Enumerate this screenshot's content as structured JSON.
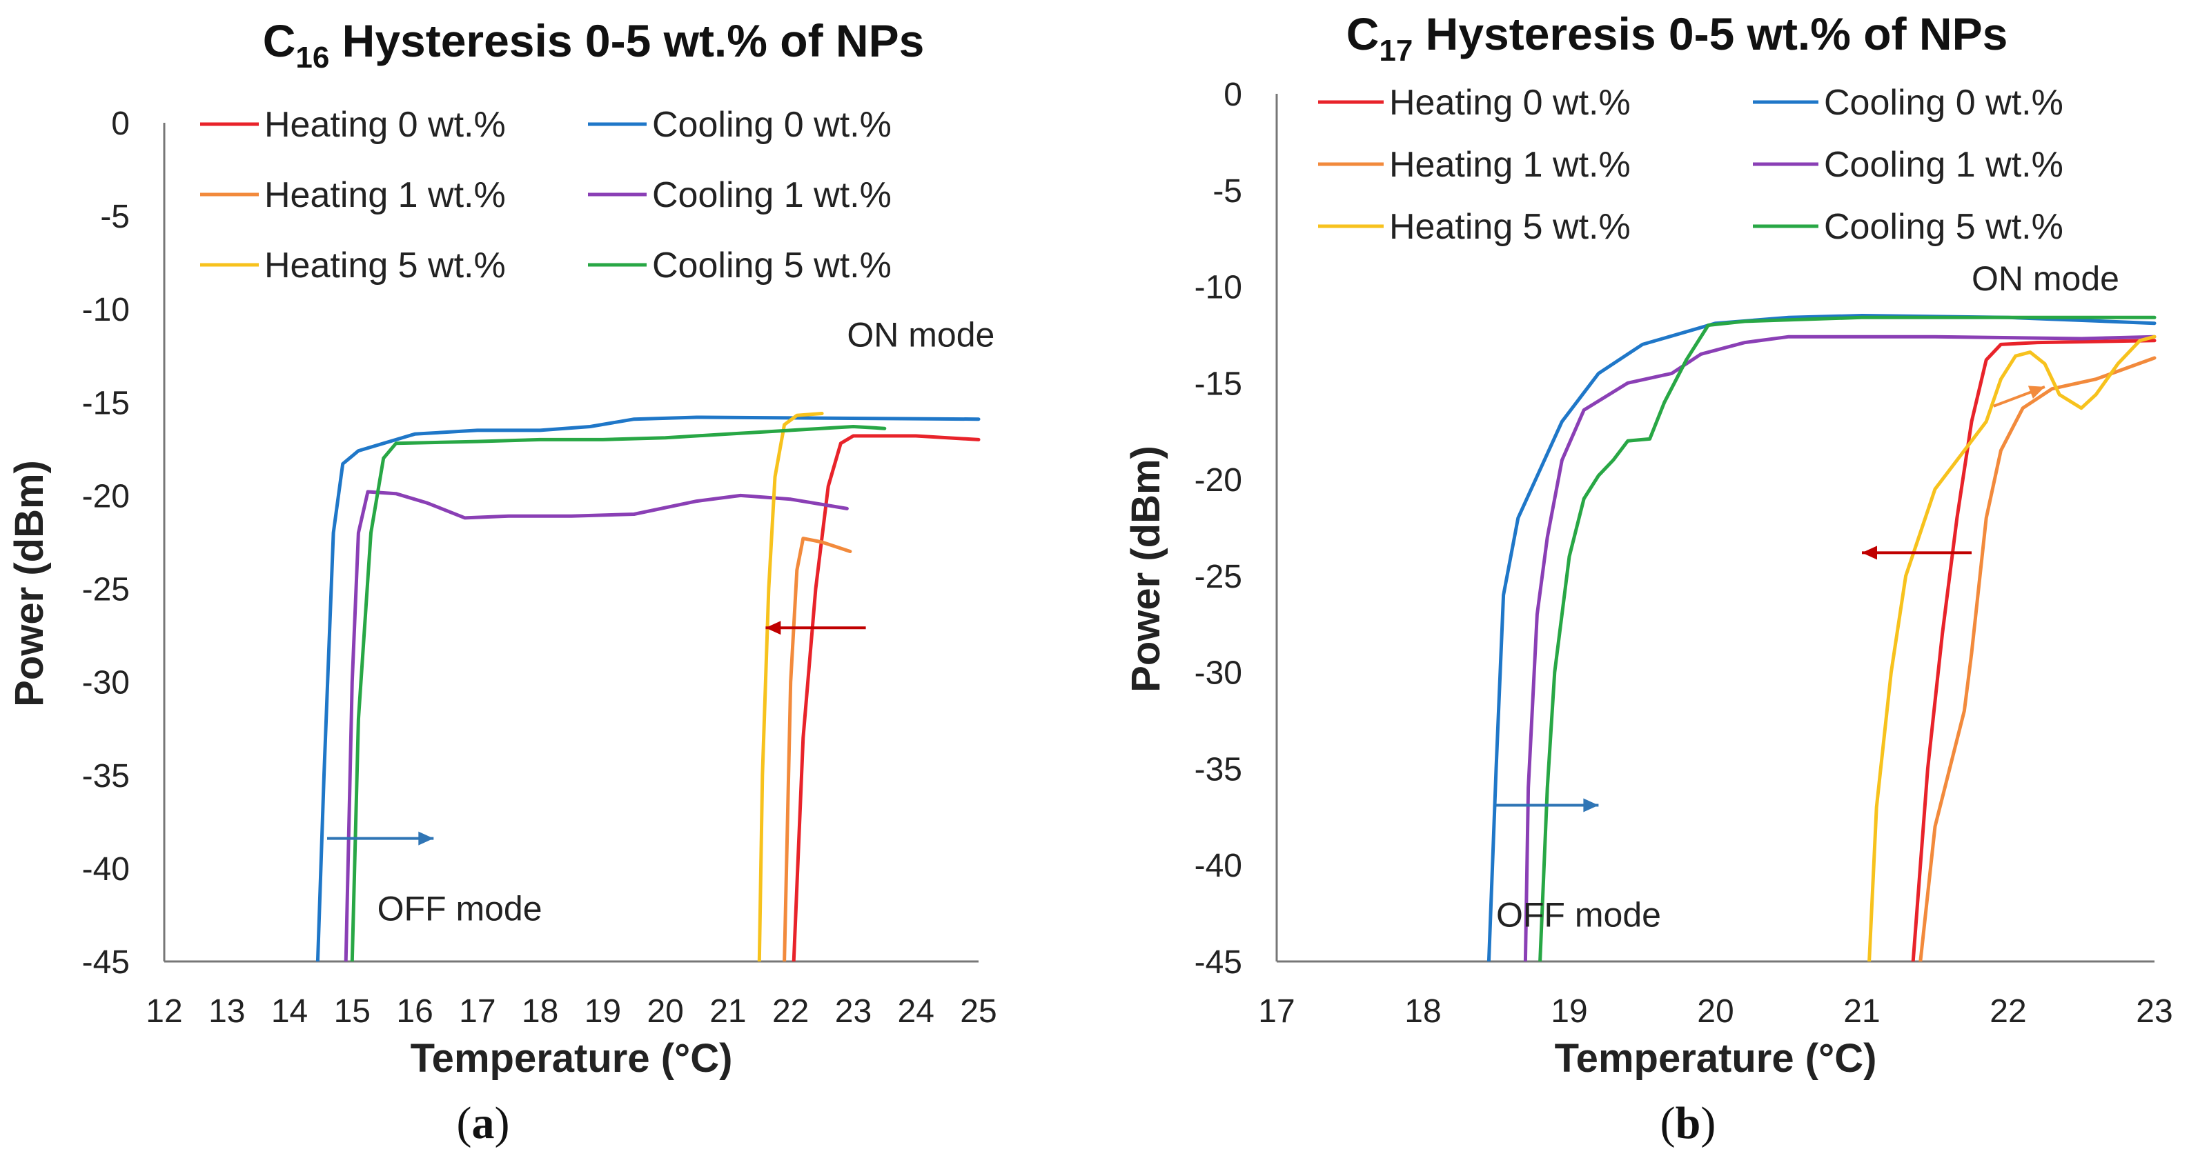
{
  "chart_data": [
    {
      "type": "line",
      "title_main": "C",
      "title_sub": "16",
      "title_rest": " Hysteresis 0-5 wt.% of NPs",
      "xlabel": "Temperature (°C)",
      "ylabel": "Power (dBm)",
      "xlim": [
        12,
        25
      ],
      "ylim": [
        -45,
        0
      ],
      "xticks": [
        "12",
        "13",
        "14",
        "15",
        "16",
        "17",
        "18",
        "19",
        "20",
        "21",
        "22",
        "23",
        "24",
        "25"
      ],
      "yticks": [
        "0",
        "-5",
        "-10",
        "-15",
        "-20",
        "-25",
        "-30",
        "-35",
        "-40",
        "-45"
      ],
      "caption_open": "(",
      "caption_letter": "a",
      "caption_close": ")",
      "annotations": [
        {
          "name": "on-mode-label",
          "text": "ON mode",
          "x": 22.9,
          "y": -12.0
        },
        {
          "name": "off-mode-label",
          "text": "OFF mode",
          "x": 15.4,
          "y": -42.8
        }
      ],
      "arrows": [
        {
          "name": "heating-arrow",
          "from": [
            23.2,
            -27.1
          ],
          "to": [
            21.6,
            -27.1
          ],
          "color": "#c00000"
        },
        {
          "name": "cooling-arrow",
          "from": [
            14.6,
            -38.4
          ],
          "to": [
            16.3,
            -38.4
          ],
          "color": "#2f75b5"
        }
      ],
      "series": [
        {
          "name": "Heating 0 wt.%",
          "color": "#e8232a",
          "points": [
            [
              22.05,
              -45
            ],
            [
              22.2,
              -33
            ],
            [
              22.4,
              -25
            ],
            [
              22.6,
              -19.5
            ],
            [
              22.8,
              -17.2
            ],
            [
              23.0,
              -16.8
            ],
            [
              24.0,
              -16.8
            ],
            [
              25.0,
              -17.0
            ]
          ]
        },
        {
          "name": "Cooling 0 wt.%",
          "color": "#1f77c8",
          "points": [
            [
              14.45,
              -45
            ],
            [
              14.55,
              -35
            ],
            [
              14.7,
              -22
            ],
            [
              14.85,
              -18.3
            ],
            [
              15.1,
              -17.6
            ],
            [
              15.5,
              -17.2
            ],
            [
              16.0,
              -16.7
            ],
            [
              17.0,
              -16.5
            ],
            [
              18.0,
              -16.5
            ],
            [
              18.8,
              -16.3
            ],
            [
              19.5,
              -15.9
            ],
            [
              20.5,
              -15.8
            ],
            [
              25.0,
              -15.9
            ]
          ]
        },
        {
          "name": "Heating 1 wt.%",
          "color": "#f28a3c",
          "points": [
            [
              21.9,
              -45
            ],
            [
              22.0,
              -30
            ],
            [
              22.1,
              -24
            ],
            [
              22.2,
              -22.3
            ],
            [
              22.5,
              -22.5
            ],
            [
              22.95,
              -23.0
            ]
          ]
        },
        {
          "name": "Cooling 1 wt.%",
          "color": "#8a3fb5",
          "points": [
            [
              14.9,
              -45
            ],
            [
              15.0,
              -30
            ],
            [
              15.1,
              -22
            ],
            [
              15.25,
              -19.8
            ],
            [
              15.7,
              -19.9
            ],
            [
              16.2,
              -20.4
            ],
            [
              16.8,
              -21.2
            ],
            [
              17.5,
              -21.1
            ],
            [
              18.5,
              -21.1
            ],
            [
              19.5,
              -21.0
            ],
            [
              20.5,
              -20.3
            ],
            [
              21.2,
              -20.0
            ],
            [
              22.0,
              -20.2
            ],
            [
              22.9,
              -20.7
            ]
          ]
        },
        {
          "name": "Heating 5 wt.%",
          "color": "#f7c21d",
          "points": [
            [
              21.5,
              -45
            ],
            [
              21.55,
              -35
            ],
            [
              21.65,
              -25
            ],
            [
              21.75,
              -19
            ],
            [
              21.9,
              -16.2
            ],
            [
              22.1,
              -15.7
            ],
            [
              22.5,
              -15.6
            ]
          ]
        },
        {
          "name": "Cooling 5 wt.%",
          "color": "#28a745",
          "points": [
            [
              15.0,
              -45
            ],
            [
              15.1,
              -32
            ],
            [
              15.3,
              -22
            ],
            [
              15.5,
              -18
            ],
            [
              15.7,
              -17.2
            ],
            [
              17.0,
              -17.1
            ],
            [
              18.0,
              -17.0
            ],
            [
              19.0,
              -17.0
            ],
            [
              20.0,
              -16.9
            ],
            [
              21.0,
              -16.7
            ],
            [
              22.0,
              -16.5
            ],
            [
              23.0,
              -16.3
            ],
            [
              23.5,
              -16.4
            ]
          ]
        }
      ]
    },
    {
      "type": "line",
      "title_main": "C",
      "title_sub": "17",
      "title_rest": " Hysteresis 0-5 wt.% of NPs",
      "xlabel": "Temperature (°C)",
      "ylabel": "Power (dBm)",
      "xlim": [
        17,
        23
      ],
      "ylim": [
        -45,
        0
      ],
      "xticks": [
        "17",
        "18",
        "19",
        "20",
        "21",
        "22",
        "23"
      ],
      "yticks": [
        "0",
        "-5",
        "-10",
        "-15",
        "-20",
        "-25",
        "-30",
        "-35",
        "-40",
        "-45"
      ],
      "caption_open": "(",
      "caption_letter": "b",
      "caption_close": ")",
      "annotations": [
        {
          "name": "on-mode-label",
          "text": "ON mode",
          "x": 21.75,
          "y": -10.2
        },
        {
          "name": "off-mode-label",
          "text": "OFF mode",
          "x": 18.5,
          "y": -43.2
        }
      ],
      "arrows": [
        {
          "name": "heating-arrow",
          "from": [
            21.75,
            -23.8
          ],
          "to": [
            21.0,
            -23.8
          ],
          "color": "#c00000"
        },
        {
          "name": "cooling-arrow",
          "from": [
            18.5,
            -36.9
          ],
          "to": [
            19.2,
            -36.9
          ],
          "color": "#2f75b5"
        },
        {
          "name": "heating-1-arrow",
          "from": [
            21.9,
            -16.2
          ],
          "to": [
            22.25,
            -15.2
          ],
          "color": "#f28a3c"
        }
      ],
      "series": [
        {
          "name": "Heating 0 wt.%",
          "color": "#e8232a",
          "points": [
            [
              21.35,
              -45
            ],
            [
              21.45,
              -35
            ],
            [
              21.55,
              -28
            ],
            [
              21.65,
              -22
            ],
            [
              21.75,
              -17
            ],
            [
              21.85,
              -13.8
            ],
            [
              21.95,
              -13.0
            ],
            [
              22.2,
              -12.9
            ],
            [
              23.0,
              -12.8
            ]
          ]
        },
        {
          "name": "Cooling 0 wt.%",
          "color": "#1f77c8",
          "points": [
            [
              18.45,
              -45
            ],
            [
              18.5,
              -35
            ],
            [
              18.55,
              -26
            ],
            [
              18.65,
              -22
            ],
            [
              18.8,
              -19.5
            ],
            [
              18.95,
              -17
            ],
            [
              19.2,
              -14.5
            ],
            [
              19.5,
              -13.0
            ],
            [
              20.0,
              -11.9
            ],
            [
              20.5,
              -11.6
            ],
            [
              21.0,
              -11.5
            ],
            [
              22.0,
              -11.6
            ],
            [
              23.0,
              -11.9
            ]
          ]
        },
        {
          "name": "Heating 1 wt.%",
          "color": "#f28a3c",
          "points": [
            [
              21.4,
              -45
            ],
            [
              21.5,
              -38
            ],
            [
              21.6,
              -35
            ],
            [
              21.7,
              -32
            ],
            [
              21.75,
              -29
            ],
            [
              21.85,
              -22
            ],
            [
              21.95,
              -18.5
            ],
            [
              22.1,
              -16.3
            ],
            [
              22.3,
              -15.3
            ],
            [
              22.6,
              -14.8
            ],
            [
              23.0,
              -13.7
            ]
          ]
        },
        {
          "name": "Cooling 1 wt.%",
          "color": "#8a3fb5",
          "points": [
            [
              18.7,
              -45
            ],
            [
              18.72,
              -36
            ],
            [
              18.78,
              -27
            ],
            [
              18.85,
              -23
            ],
            [
              18.95,
              -19
            ],
            [
              19.1,
              -16.4
            ],
            [
              19.4,
              -15.0
            ],
            [
              19.7,
              -14.5
            ],
            [
              19.9,
              -13.5
            ],
            [
              20.2,
              -12.9
            ],
            [
              20.5,
              -12.6
            ],
            [
              21.5,
              -12.6
            ],
            [
              22.5,
              -12.7
            ],
            [
              23.0,
              -12.6
            ]
          ]
        },
        {
          "name": "Heating 5 wt.%",
          "color": "#f7c21d",
          "points": [
            [
              21.05,
              -45
            ],
            [
              21.1,
              -37
            ],
            [
              21.2,
              -30
            ],
            [
              21.3,
              -25
            ],
            [
              21.5,
              -20.5
            ],
            [
              21.7,
              -18.5
            ],
            [
              21.85,
              -17
            ],
            [
              21.95,
              -14.8
            ],
            [
              22.05,
              -13.6
            ],
            [
              22.15,
              -13.4
            ],
            [
              22.25,
              -14.0
            ],
            [
              22.35,
              -15.6
            ],
            [
              22.5,
              -16.3
            ],
            [
              22.6,
              -15.6
            ],
            [
              22.75,
              -14.0
            ],
            [
              22.9,
              -12.8
            ],
            [
              23.0,
              -12.6
            ]
          ]
        },
        {
          "name": "Cooling 5 wt.%",
          "color": "#28a745",
          "points": [
            [
              18.8,
              -45
            ],
            [
              18.85,
              -36
            ],
            [
              18.9,
              -30
            ],
            [
              19.0,
              -24
            ],
            [
              19.1,
              -21
            ],
            [
              19.2,
              -19.8
            ],
            [
              19.3,
              -19.0
            ],
            [
              19.4,
              -18.0
            ],
            [
              19.55,
              -17.9
            ],
            [
              19.65,
              -16.0
            ],
            [
              19.8,
              -13.8
            ],
            [
              19.95,
              -12.0
            ],
            [
              20.2,
              -11.8
            ],
            [
              21.0,
              -11.6
            ],
            [
              22.0,
              -11.6
            ],
            [
              23.0,
              -11.6
            ]
          ]
        }
      ]
    }
  ]
}
